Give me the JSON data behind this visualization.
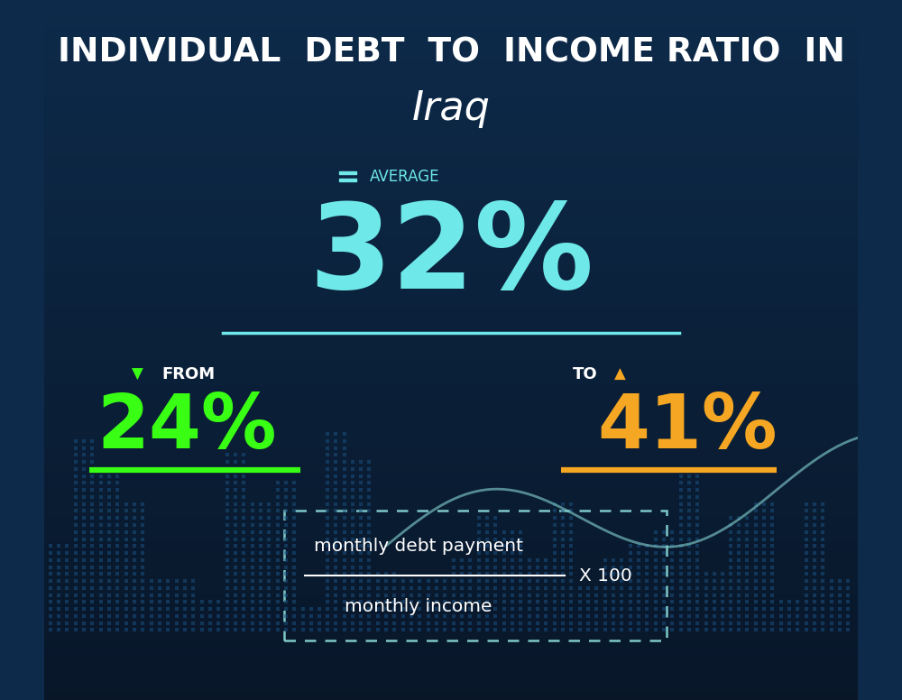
{
  "title_line1": "INDIVIDUAL  DEBT  TO  INCOME RATIO  IN",
  "title_line2": "Iraq",
  "bg_color_top": "#0d2a4a",
  "bg_color_bottom": "#081628",
  "average_label": "AVERAGE",
  "average_value": "32%",
  "average_color": "#6ee8e8",
  "from_label": "FROM",
  "from_value": "24%",
  "from_color": "#39ff14",
  "from_arrow": "▼",
  "to_label": "TO",
  "to_value": "41%",
  "to_color": "#f5a623",
  "to_arrow": "▲",
  "formula_numerator": "monthly debt payment",
  "formula_denominator": "monthly income",
  "formula_multiplier": "X 100",
  "line_color": "#6ee8e8",
  "text_color": "#ffffff",
  "figsize": [
    10.0,
    7.76
  ],
  "dpi": 100
}
